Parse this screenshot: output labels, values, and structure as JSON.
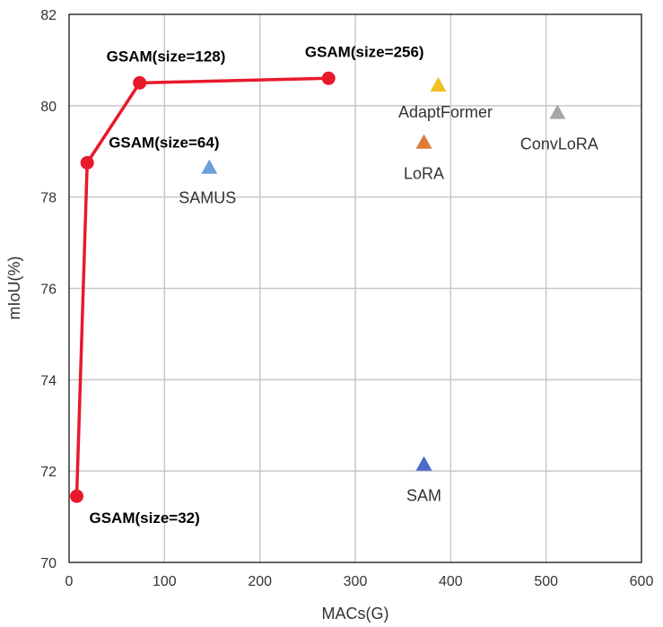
{
  "chart_data": {
    "type": "scatter",
    "title": "",
    "xlabel": "MACs(G)",
    "ylabel": "mIoU(%)",
    "xlim": [
      0,
      600
    ],
    "ylim": [
      70,
      82
    ],
    "x_ticks": [
      "0",
      "100",
      "200",
      "300",
      "400",
      "500",
      "600"
    ],
    "y_ticks": [
      "70",
      "72",
      "74",
      "76",
      "78",
      "80",
      "82"
    ],
    "grid": true,
    "legend": "none",
    "series": [
      {
        "style": "line-circle",
        "color": "#e8192c",
        "points": [
          {
            "x": 8,
            "y": 71.45,
            "label": "GSAM(size=32)"
          },
          {
            "x": 19,
            "y": 78.75,
            "label": "GSAM(size=64)"
          },
          {
            "x": 74,
            "y": 80.5,
            "label": "GSAM(size=128)"
          },
          {
            "x": 272,
            "y": 80.6,
            "label": "GSAM(size=256)"
          }
        ]
      },
      {
        "style": "triangle",
        "points": [
          {
            "x": 147,
            "y": 78.65,
            "label": "SAMUS",
            "color": "#6d9fdc"
          },
          {
            "x": 372,
            "y": 72.15,
            "label": "SAM",
            "color": "#4a6bc8"
          },
          {
            "x": 372,
            "y": 79.2,
            "label": "LoRA",
            "color": "#e07a35"
          },
          {
            "x": 387,
            "y": 80.45,
            "label": "AdaptFormer",
            "color": "#f0c020"
          },
          {
            "x": 512,
            "y": 79.85,
            "label": "ConvLoRA",
            "color": "#a6a6a6"
          }
        ]
      }
    ]
  }
}
